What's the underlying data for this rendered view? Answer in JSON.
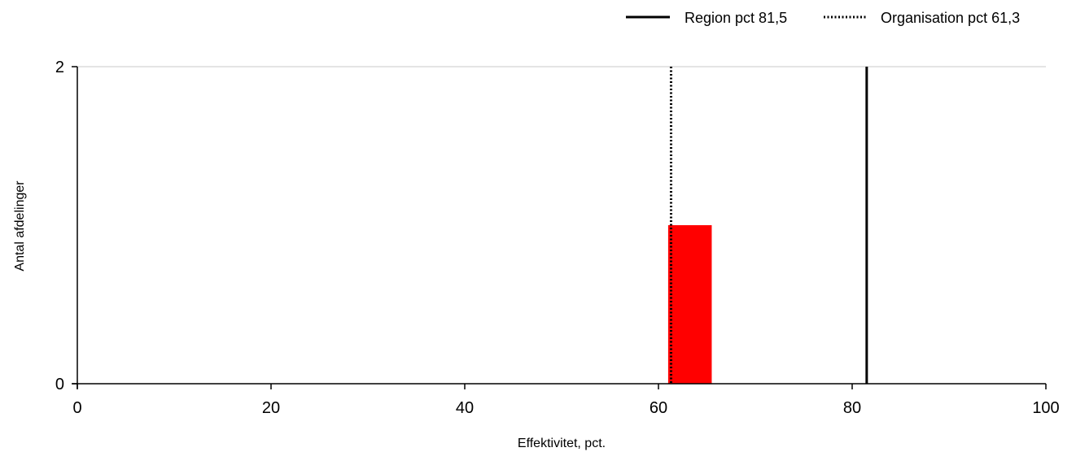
{
  "chart_data": {
    "type": "bar",
    "xlabel": "Effektivitet, pct.",
    "ylabel": "Antal afdelinger",
    "xlim": [
      0,
      100
    ],
    "ylim": [
      0,
      2
    ],
    "x_ticks": [
      0,
      20,
      40,
      60,
      80,
      100
    ],
    "y_ticks": [
      0,
      2
    ],
    "grid": "horizontal at top tick",
    "legend_position": "top-right",
    "bars": [
      {
        "x_start": 61,
        "x_end": 65.5,
        "value": 1,
        "color": "#ff0000"
      }
    ],
    "reference_lines": [
      {
        "label": "Region pct 81,5",
        "x": 81.5,
        "style": "solid",
        "color": "#000000"
      },
      {
        "label": "Organisation pct 61,3",
        "x": 61.3,
        "style": "dotted",
        "color": "#000000"
      }
    ]
  }
}
